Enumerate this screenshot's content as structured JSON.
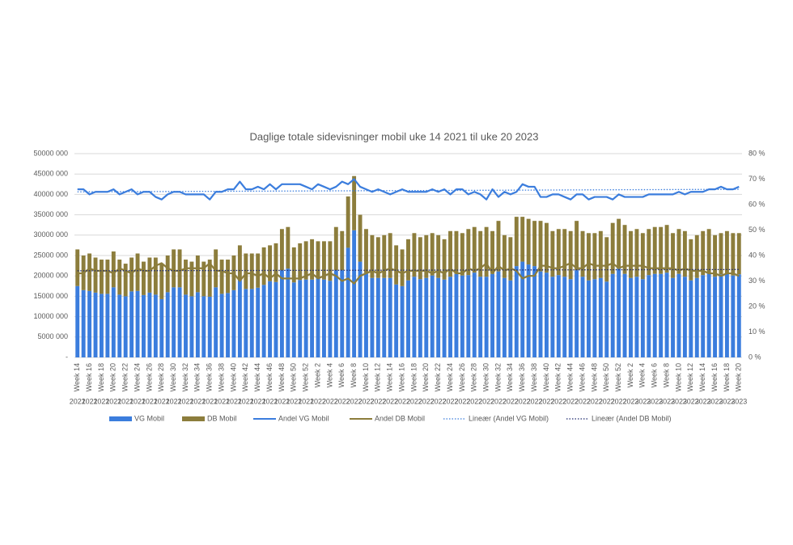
{
  "chart_data": {
    "type": "bar",
    "stacked": true,
    "title": "Daglige totale sidevisninger mobil uke 14 2021 til uke 20 2023",
    "categories": [
      "Week 14",
      null,
      "Week 16",
      null,
      "Week 18",
      null,
      "Week 20",
      null,
      "Week 22",
      null,
      "Week 24",
      null,
      "Week 26",
      null,
      "Week 28",
      null,
      "Week 30",
      null,
      "Week 32",
      null,
      "Week 34",
      null,
      "Week 36",
      null,
      "Week 38",
      null,
      "Week 40",
      null,
      "Week 42",
      null,
      "Week 44",
      null,
      "Week 46",
      null,
      "Week 48",
      null,
      "Week 50",
      null,
      "Week 52",
      null,
      "Week 2",
      null,
      "Week 4",
      null,
      "Week 6",
      null,
      "Week 8",
      null,
      "Week 10",
      null,
      "Week 12",
      null,
      "Week 14",
      null,
      "Week 16",
      null,
      "Week 18",
      null,
      "Week 20",
      null,
      "Week 22",
      null,
      "Week 24",
      null,
      "Week 26",
      null,
      "Week 28",
      null,
      "Week 30",
      null,
      "Week 32",
      null,
      "Week 34",
      null,
      "Week 36",
      null,
      "Week 38",
      null,
      "Week 40",
      null,
      "Week 42",
      null,
      "Week 44",
      null,
      "Week 46",
      null,
      "Week 48",
      null,
      "Week 50",
      null,
      "Week 52",
      null,
      "Week 2",
      null,
      "Week 4",
      null,
      "Week 6",
      null,
      "Week 8",
      null,
      "Week 10",
      null,
      "Week 12",
      null,
      "Week 14",
      null,
      "Week 16",
      null,
      "Week 18",
      null,
      "Week 20"
    ],
    "years": [
      "2021",
      null,
      "2021",
      null,
      "2021",
      null,
      "2021",
      null,
      "2021",
      null,
      "2021",
      null,
      "2021",
      null,
      "2021",
      null,
      "2021",
      null,
      "2021",
      null,
      "2021",
      null,
      "2021",
      null,
      "2021",
      null,
      "2021",
      null,
      "2021",
      null,
      "2021",
      null,
      "2021",
      null,
      "2021",
      null,
      "2021",
      null,
      "2021",
      null,
      "2022",
      null,
      "2022",
      null,
      "2022",
      null,
      "2022",
      null,
      "2022",
      null,
      "2022",
      null,
      "2022",
      null,
      "2022",
      null,
      "2022",
      null,
      "2022",
      null,
      "2022",
      null,
      "2022",
      null,
      "2022",
      null,
      "2022",
      null,
      "2022",
      null,
      "2022",
      null,
      "2022",
      null,
      "2022",
      null,
      "2022",
      null,
      "2022",
      null,
      "2022",
      null,
      "2022",
      null,
      "2022",
      null,
      "2022",
      null,
      "2022",
      null,
      "2022",
      null,
      "2023",
      null,
      "2023",
      null,
      "2023",
      null,
      "2023",
      null,
      "2023",
      null,
      "2023",
      null,
      "2023",
      null,
      "2023",
      null,
      "2023",
      null,
      "2023"
    ],
    "series": [
      {
        "name": "VG Mobil",
        "type": "bar",
        "color": "#3b7ddd",
        "values": [
          17500000,
          16500000,
          16300000,
          15900000,
          15600000,
          15600000,
          17200000,
          15400000,
          15000000,
          16200000,
          16300000,
          15300000,
          15900000,
          15400000,
          14300000,
          16000000,
          17200000,
          17200000,
          15400000,
          15000000,
          16000000,
          15000000,
          14900000,
          17200000,
          15600000,
          15800000,
          16500000,
          19000000,
          16800000,
          16800000,
          17100000,
          17800000,
          18700000,
          18500000,
          21400000,
          21800000,
          18400000,
          19000000,
          19100000,
          19100000,
          19400000,
          19100000,
          18800000,
          21400000,
          21400000,
          26900000,
          31200000,
          23500000,
          20800000,
          19500000,
          19500000,
          19500000,
          19500000,
          17900000,
          17500000,
          18900000,
          19800000,
          19200000,
          19500000,
          20100000,
          19500000,
          19100000,
          19800000,
          20500000,
          20100000,
          20200000,
          20800000,
          19800000,
          19800000,
          20500000,
          21100000,
          19500000,
          18900000,
          22400000,
          23500000,
          22800000,
          22400000,
          21100000,
          20800000,
          19800000,
          20200000,
          19800000,
          19200000,
          21400000,
          19800000,
          18900000,
          19200000,
          19500000,
          18600000,
          20500000,
          21800000,
          20500000,
          19500000,
          19800000,
          19200000,
          20200000,
          20500000,
          20500000,
          20800000,
          19500000,
          20500000,
          19800000,
          18900000,
          19500000,
          20200000,
          20800000,
          19800000,
          20400000,
          20500000,
          20100000,
          20400000
        ]
      },
      {
        "name": "DB Mobil",
        "type": "bar",
        "color": "#8c7d3c",
        "values": [
          9000000,
          8500000,
          9200000,
          8600000,
          8400000,
          8400000,
          8800000,
          8600000,
          8000000,
          8300000,
          9200000,
          8200000,
          8600000,
          9100000,
          8700000,
          9000000,
          9300000,
          9300000,
          8600000,
          8500000,
          9000000,
          8500000,
          9100000,
          9300000,
          8400000,
          8200000,
          8500000,
          8500000,
          8700000,
          8700000,
          8400000,
          9200000,
          8800000,
          9500000,
          10100000,
          10200000,
          8600000,
          9000000,
          9400000,
          9900000,
          9100000,
          9400000,
          9700000,
          10600000,
          9600000,
          12600000,
          13300000,
          11500000,
          10700000,
          10500000,
          10000000,
          10500000,
          11000000,
          9600000,
          9000000,
          10100000,
          10700000,
          10300000,
          10500000,
          10400000,
          10500000,
          9900000,
          11200000,
          10500000,
          10400000,
          11300000,
          11200000,
          11200000,
          12200000,
          10500000,
          12400000,
          10500000,
          10600000,
          12100000,
          11000000,
          11200000,
          11100000,
          12400000,
          12200000,
          11200000,
          11300000,
          11700000,
          11800000,
          12100000,
          11200000,
          11600000,
          11300000,
          11500000,
          10900000,
          12500000,
          12200000,
          12000000,
          11500000,
          11700000,
          11300000,
          11300000,
          11500000,
          11500000,
          11700000,
          11000000,
          11000000,
          11200000,
          10100000,
          10500000,
          10800000,
          10700000,
          10200000,
          10100000,
          10500000,
          10400000,
          10100000
        ]
      },
      {
        "name": "Andel VG Mobil",
        "type": "line",
        "axis": "y2",
        "color": "#3b7ddd",
        "values": [
          66,
          66,
          64,
          65,
          65,
          65,
          66,
          64,
          65,
          66,
          64,
          65,
          65,
          63,
          62,
          64,
          65,
          65,
          64,
          64,
          64,
          64,
          62,
          65,
          65,
          66,
          66,
          69,
          66,
          66,
          67,
          66,
          68,
          66,
          68,
          68,
          68,
          68,
          67,
          66,
          68,
          67,
          66,
          67,
          69,
          68,
          70,
          67,
          66,
          65,
          66,
          65,
          64,
          65,
          66,
          65,
          65,
          65,
          65,
          66,
          65,
          66,
          64,
          66,
          66,
          64,
          65,
          64,
          62,
          66,
          63,
          65,
          64,
          65,
          68,
          67,
          67,
          63,
          63,
          64,
          64,
          63,
          62,
          64,
          64,
          62,
          63,
          63,
          63,
          62,
          64,
          63,
          63,
          63,
          63,
          64,
          64,
          64,
          64,
          64,
          65,
          64,
          65,
          65,
          65,
          66,
          66,
          67,
          66,
          66,
          67
        ]
      },
      {
        "name": "Andel DB Mobil",
        "type": "line",
        "axis": "y2",
        "color": "#8c7d3c",
        "values": [
          33,
          33,
          35,
          34,
          34,
          34,
          33,
          35,
          34,
          33,
          35,
          34,
          34,
          36,
          37,
          35,
          34,
          34,
          35,
          35,
          35,
          35,
          37,
          34,
          34,
          33,
          33,
          30,
          33,
          33,
          32,
          33,
          31,
          33,
          31,
          31,
          31,
          31,
          32,
          33,
          31,
          32,
          33,
          32,
          30,
          31,
          29,
          32,
          33,
          34,
          33,
          34,
          35,
          34,
          33,
          34,
          34,
          34,
          34,
          33,
          34,
          33,
          35,
          33,
          33,
          35,
          34,
          35,
          37,
          33,
          36,
          34,
          35,
          34,
          31,
          32,
          32,
          36,
          36,
          35,
          35,
          36,
          37,
          35,
          35,
          37,
          36,
          36,
          36,
          37,
          35,
          36,
          36,
          36,
          36,
          35,
          35,
          35,
          35,
          35,
          34,
          35,
          34,
          34,
          34,
          33,
          33,
          32,
          33,
          33,
          32
        ]
      }
    ],
    "trendlines": [
      {
        "name": "Lineær (Andel VG Mobil)",
        "color": "#3b7ddd",
        "values": [
          65,
          66
        ]
      },
      {
        "name": "Lineær (Andel DB Mobil)",
        "color": "#1f2a6e",
        "values": [
          34,
          34.5
        ]
      }
    ],
    "ylim": [
      0,
      50000000
    ],
    "yticks": [
      {
        "value": 0,
        "label": "-"
      },
      {
        "value": 5000000,
        "label": "5000 000"
      },
      {
        "value": 10000000,
        "label": "10000 000"
      },
      {
        "value": 15000000,
        "label": "15000 000"
      },
      {
        "value": 20000000,
        "label": "20000 000"
      },
      {
        "value": 25000000,
        "label": "25000 000"
      },
      {
        "value": 30000000,
        "label": "30000 000"
      },
      {
        "value": 35000000,
        "label": "35000 000"
      },
      {
        "value": 40000000,
        "label": "40000 000"
      },
      {
        "value": 45000000,
        "label": "45000 000"
      },
      {
        "value": 50000000,
        "label": "50000 000"
      }
    ],
    "y2lim": [
      0,
      80
    ],
    "y2ticks": [
      {
        "value": 0,
        "label": "0 %"
      },
      {
        "value": 10,
        "label": "10 %"
      },
      {
        "value": 20,
        "label": "20 %"
      },
      {
        "value": 30,
        "label": "30 %"
      },
      {
        "value": 40,
        "label": "40 %"
      },
      {
        "value": 50,
        "label": "50 %"
      },
      {
        "value": 60,
        "label": "60 %"
      },
      {
        "value": 70,
        "label": "70 %"
      },
      {
        "value": 80,
        "label": "80 %"
      }
    ],
    "grid": true,
    "legend": "bottom"
  }
}
